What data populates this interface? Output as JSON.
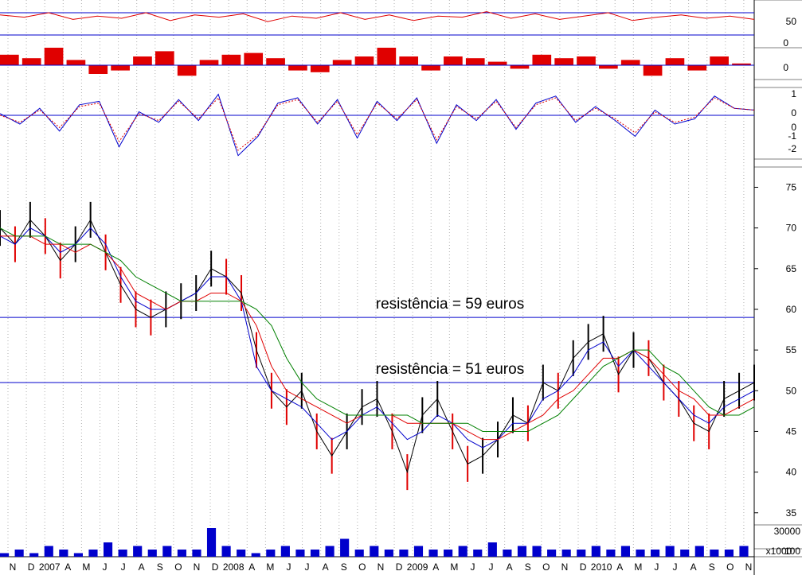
{
  "chart_data": [
    {
      "type": "line",
      "panel": "oscillator",
      "series": [
        {
          "values": [
            58,
            56,
            60,
            54,
            57,
            55,
            60,
            53,
            58,
            56,
            59,
            52,
            57,
            55,
            60,
            54,
            58,
            53,
            57,
            56,
            61,
            55,
            59,
            54,
            57,
            60,
            53,
            56,
            58,
            55,
            57,
            54
          ]
        }
      ],
      "reference_lines": [
        {
          "y": 60
        },
        {
          "y": 40
        }
      ],
      "ytick_labels": [
        "50"
      ],
      "ylim": [
        30,
        70
      ],
      "colors": {
        "line": "#e00000",
        "reference": "#0000cc"
      }
    },
    {
      "type": "bar",
      "panel": "histogram",
      "values": [
        0.6,
        0.4,
        1.0,
        0.3,
        -0.5,
        -0.3,
        0.5,
        0.8,
        -0.6,
        0.3,
        0.6,
        0.7,
        0.4,
        -0.3,
        -0.4,
        0.3,
        0.5,
        1.0,
        0.5,
        -0.3,
        0.5,
        0.4,
        0.2,
        -0.2,
        0.6,
        0.4,
        0.5,
        -0.2,
        0.3,
        -0.6,
        0.4,
        -0.3,
        0.5,
        0.1
      ],
      "ytick_labels": [
        "0",
        "0"
      ],
      "ylim": [
        -1,
        1
      ],
      "colors": {
        "bar": "#e00000",
        "zero_line": "#0000cc"
      }
    },
    {
      "type": "line",
      "panel": "macd",
      "series": [
        {
          "values": [
            0.1,
            -0.5,
            0.4,
            -0.9,
            0.6,
            0.8,
            -1.8,
            0.2,
            -0.4,
            0.9,
            -0.3,
            1.2,
            -2.3,
            -1.2,
            0.7,
            1.0,
            -0.5,
            0.9,
            -1.3,
            0.8,
            -0.3,
            1.0,
            -1.6,
            0.6,
            -0.3,
            0.9,
            -0.8,
            0.7,
            1.1,
            -0.4,
            0.5,
            -0.3,
            -1.2,
            0.3,
            -0.5,
            -0.2,
            1.1,
            0.4,
            0.3
          ]
        },
        {
          "values": [
            0.0,
            -0.4,
            0.3,
            -0.7,
            0.5,
            0.7,
            -1.5,
            0.1,
            -0.3,
            0.8,
            -0.2,
            1.0,
            -2.0,
            -1.1,
            0.6,
            0.9,
            -0.4,
            0.8,
            -1.1,
            0.7,
            -0.2,
            0.9,
            -1.4,
            0.5,
            -0.2,
            0.8,
            -0.7,
            0.6,
            1.0,
            -0.3,
            0.4,
            -0.2,
            -1.0,
            0.2,
            -0.4,
            -0.1,
            1.0,
            0.4,
            0.3
          ]
        }
      ],
      "reference_lines": [
        {
          "y": 0
        }
      ],
      "ytick_labels": [
        "1",
        "0",
        "0",
        "-1",
        "-2"
      ],
      "ylim": [
        -2.5,
        1.5
      ],
      "colors": {
        "line_1": "#0000cc",
        "line_2": "#e00000",
        "reference": "#0000cc"
      }
    },
    {
      "type": "line",
      "panel": "price",
      "series": [
        {
          "values": [
            70,
            68,
            71,
            69,
            66,
            68,
            71,
            67,
            63,
            60,
            59,
            60,
            61,
            62,
            65,
            64,
            62,
            55,
            50,
            48,
            50,
            45,
            42,
            45,
            48,
            49,
            45,
            40,
            47,
            49,
            45,
            41,
            42,
            44,
            47,
            46,
            51,
            50,
            54,
            56,
            57,
            52,
            55,
            54,
            51,
            49,
            46,
            45,
            49,
            50,
            51
          ]
        },
        {
          "values": [
            69,
            68,
            70,
            69,
            67,
            68,
            70,
            68,
            64,
            61,
            60,
            60,
            61,
            62,
            64,
            64,
            61,
            53,
            50,
            49,
            48,
            46,
            44,
            45,
            47,
            48,
            46,
            44,
            45,
            47,
            46,
            44,
            43,
            44,
            46,
            46,
            49,
            50,
            52,
            55,
            56,
            53,
            55,
            53,
            51,
            49,
            47,
            46,
            48,
            49,
            50
          ]
        },
        {
          "values": [
            69,
            69,
            69,
            68,
            68,
            67,
            68,
            67,
            65,
            62,
            61,
            60,
            61,
            61,
            62,
            62,
            61,
            58,
            53,
            50,
            49,
            48,
            47,
            46,
            47,
            47,
            47,
            46,
            46,
            46,
            46,
            45,
            44,
            44,
            45,
            46,
            47,
            49,
            50,
            52,
            54,
            54,
            55,
            54,
            52,
            50,
            49,
            47,
            47,
            48,
            49
          ]
        },
        {
          "values": [
            70,
            69,
            69,
            69,
            68,
            68,
            68,
            67,
            66,
            64,
            63,
            62,
            61,
            61,
            61,
            61,
            61,
            60,
            58,
            54,
            51,
            49,
            48,
            47,
            47,
            47,
            47,
            47,
            46,
            46,
            46,
            46,
            45,
            45,
            45,
            45,
            46,
            47,
            49,
            51,
            53,
            54,
            55,
            55,
            53,
            52,
            50,
            48,
            47,
            47,
            48
          ]
        }
      ],
      "reference_lines": [
        {
          "y": 59,
          "label": "resistência = 59 euros"
        },
        {
          "y": 51,
          "label": "resistência = 51 euros"
        }
      ],
      "ytick_labels": [
        "75",
        "70",
        "65",
        "60",
        "55",
        "50",
        "45",
        "40",
        "35"
      ],
      "ylim": [
        34,
        77
      ],
      "colors": {
        "price": "#000000",
        "down": "#e00000",
        "ma_fast": "#0000cc",
        "ma_medium": "#e00000",
        "ma_slow": "#008000",
        "reference": "#0000cc"
      }
    },
    {
      "type": "bar",
      "panel": "volume",
      "values": [
        1,
        2,
        1,
        3,
        2,
        1,
        2,
        4,
        2,
        3,
        2,
        3,
        2,
        2,
        8,
        3,
        2,
        1,
        2,
        3,
        2,
        2,
        3,
        5,
        2,
        3,
        2,
        2,
        3,
        2,
        2,
        3,
        2,
        4,
        2,
        3,
        3,
        2,
        2,
        2,
        3,
        2,
        3,
        2,
        2,
        3,
        2,
        3,
        2,
        2,
        3
      ],
      "ytick_labels": [
        "30000",
        "100"
      ],
      "unit_label": "x1000",
      "colors": {
        "bar": "#0000cc"
      }
    }
  ],
  "x_axis_labels": [
    "N",
    "D",
    "2007",
    "A",
    "M",
    "J",
    "J",
    "A",
    "S",
    "O",
    "N",
    "D",
    "2008",
    "A",
    "M",
    "J",
    "J",
    "A",
    "S",
    "O",
    "N",
    "D",
    "2009",
    "A",
    "M",
    "J",
    "J",
    "A",
    "S",
    "O",
    "N",
    "D",
    "2010",
    "A",
    "M",
    "J",
    "J",
    "A",
    "S",
    "O",
    "N"
  ]
}
